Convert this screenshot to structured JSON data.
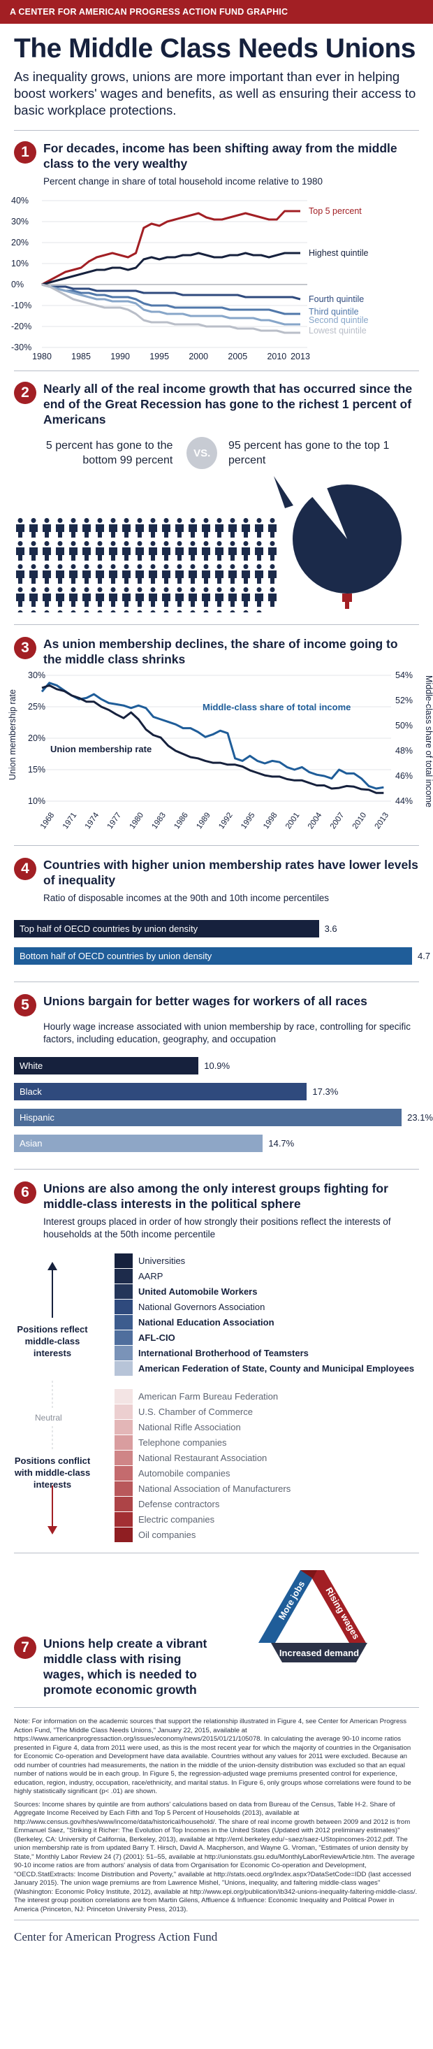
{
  "header": {
    "banner": "A CENTER FOR AMERICAN PROGRESS ACTION FUND GRAPHIC"
  },
  "title": "The Middle Class Needs Unions",
  "intro": "As inequality grows, unions are more important than ever in helping boost workers' wages and benefits, as well as ensuring their access to basic workplace protections.",
  "sections": {
    "s1": {
      "num": "1",
      "title": "For decades, income has been shifting away from the middle class to the very wealthy",
      "subtitle": "Percent change in share of total household income relative to 1980"
    },
    "s2": {
      "num": "2",
      "title": "Nearly all of the real income growth that has occurred since the end of the Great Recession has gone to the richest 1 percent of Americans",
      "left_text": "5 percent has gone to the bottom 99 percent",
      "vs": "VS.",
      "right_text": "95 percent has gone to the top 1 percent"
    },
    "s3": {
      "num": "3",
      "title": "As union membership declines, the share of income going to the middle class shrinks"
    },
    "s4": {
      "num": "4",
      "title": "Countries with higher union membership rates have lower levels of inequality",
      "subtitle": "Ratio of disposable incomes at the 90th and 10th income percentiles"
    },
    "s5": {
      "num": "5",
      "title": "Unions bargain for better wages for workers of all races",
      "subtitle": "Hourly wage increase associated with union membership by race, controlling for specific factors, including education, geography, and occupation"
    },
    "s6": {
      "num": "6",
      "title": "Unions are also among the only interest groups fighting for middle-class interests in the political sphere",
      "subtitle": "Interest groups placed in order of how strongly their positions reflect the interests of households at the 50th income percentile",
      "positive_label": "Positions reflect middle-class interests",
      "neutral_label": "Neutral",
      "negative_label": "Positions conflict with middle-class interests"
    },
    "s7": {
      "num": "7",
      "title": "Unions help create a vibrant middle class with rising wages, which is needed to promote economic growth",
      "cycle": {
        "left": "More jobs",
        "right": "Rising wages",
        "bottom": "Increased demand"
      }
    }
  },
  "chart_data": [
    {
      "type": "line",
      "title": "Percent change in share of total household income relative to 1980",
      "x_ticks": [
        "1980",
        "1985",
        "1990",
        "1995",
        "2000",
        "2005",
        "2010",
        "2013"
      ],
      "ylim": [
        -30,
        40
      ],
      "y_ticks": [
        "40%",
        "30%",
        "20%",
        "10%",
        "0%",
        "-10%",
        "-20%",
        "-30%"
      ],
      "x": [
        1980,
        1981,
        1982,
        1983,
        1984,
        1985,
        1986,
        1987,
        1988,
        1989,
        1990,
        1991,
        1992,
        1993,
        1994,
        1995,
        1996,
        1997,
        1998,
        1999,
        2000,
        2001,
        2002,
        2003,
        2004,
        2005,
        2006,
        2007,
        2008,
        2009,
        2010,
        2011,
        2012,
        2013
      ],
      "series": [
        {
          "name": "Top 5 percent",
          "color": "#a21f24",
          "values": [
            0,
            2,
            4,
            6,
            7,
            8,
            11,
            13,
            14,
            15,
            14,
            13,
            15,
            27,
            29,
            28,
            30,
            31,
            32,
            33,
            34,
            32,
            31,
            31,
            32,
            33,
            34,
            33,
            32,
            31,
            31,
            35,
            35,
            35
          ]
        },
        {
          "name": "Highest quintile",
          "color": "#16213d",
          "values": [
            0,
            1,
            2,
            3,
            4,
            5,
            6,
            7,
            7,
            8,
            8,
            7,
            8,
            12,
            13,
            12,
            13,
            13,
            14,
            14,
            15,
            14,
            13,
            13,
            14,
            14,
            15,
            14,
            14,
            13,
            14,
            15,
            15,
            15
          ]
        },
        {
          "name": "Fourth quintile",
          "color": "#2f4a7d",
          "values": [
            0,
            -1,
            -1,
            -1,
            -2,
            -2,
            -2,
            -3,
            -3,
            -3,
            -3,
            -3,
            -3,
            -4,
            -4,
            -4,
            -4,
            -4,
            -5,
            -5,
            -5,
            -5,
            -5,
            -5,
            -5,
            -5,
            -6,
            -6,
            -6,
            -6,
            -6,
            -6,
            -6,
            -7
          ]
        },
        {
          "name": "Third quintile",
          "color": "#5178aa",
          "values": [
            0,
            -1,
            -2,
            -3,
            -3,
            -4,
            -4,
            -5,
            -5,
            -6,
            -6,
            -6,
            -7,
            -9,
            -10,
            -10,
            -10,
            -11,
            -11,
            -11,
            -11,
            -11,
            -11,
            -11,
            -12,
            -12,
            -12,
            -12,
            -12,
            -12,
            -13,
            -14,
            -14,
            -14
          ]
        },
        {
          "name": "Second quintile",
          "color": "#87a6c9",
          "values": [
            0,
            -1,
            -2,
            -3,
            -4,
            -5,
            -6,
            -7,
            -7,
            -8,
            -8,
            -8,
            -9,
            -12,
            -13,
            -13,
            -14,
            -14,
            -14,
            -15,
            -15,
            -15,
            -15,
            -15,
            -16,
            -16,
            -16,
            -16,
            -17,
            -17,
            -18,
            -19,
            -19,
            -19
          ]
        },
        {
          "name": "Lowest quintile",
          "color": "#b9bec8",
          "values": [
            0,
            -1,
            -3,
            -5,
            -7,
            -8,
            -9,
            -10,
            -11,
            -11,
            -11,
            -12,
            -14,
            -17,
            -18,
            -18,
            -18,
            -19,
            -19,
            -19,
            -19,
            -20,
            -20,
            -20,
            -20,
            -21,
            -21,
            -21,
            -22,
            -22,
            -22,
            -23,
            -23,
            -23
          ]
        }
      ]
    },
    {
      "type": "table",
      "people_bottom": 99,
      "people_top": 1,
      "share_bottom_percent": 5,
      "share_top_percent": 95
    },
    {
      "type": "line",
      "x_ticks": [
        "1968",
        "1971",
        "1974",
        "1977",
        "1980",
        "1983",
        "1986",
        "1989",
        "1992",
        "1995",
        "1998",
        "2001",
        "2004",
        "2007",
        "2010",
        "2013"
      ],
      "ylabel_left": "Union membership rate",
      "ylabel_right": "Middle-class share of total income",
      "ylim_left": [
        10,
        30
      ],
      "y_ticks_left": [
        "30%",
        "25%",
        "20%",
        "15%",
        "10%"
      ],
      "ylim_right": [
        44,
        54
      ],
      "y_ticks_right": [
        "54%",
        "52%",
        "50%",
        "48%",
        "46%",
        "44%"
      ],
      "x": [
        1967,
        1968,
        1969,
        1970,
        1971,
        1972,
        1973,
        1974,
        1975,
        1976,
        1977,
        1978,
        1979,
        1980,
        1981,
        1982,
        1983,
        1984,
        1985,
        1986,
        1987,
        1988,
        1989,
        1990,
        1991,
        1992,
        1993,
        1994,
        1995,
        1996,
        1997,
        1998,
        1999,
        2000,
        2001,
        2002,
        2003,
        2004,
        2005,
        2006,
        2007,
        2008,
        2009,
        2010,
        2011,
        2012,
        2013
      ],
      "series": [
        {
          "name": "Middle-class share of total income",
          "axis": "right",
          "color": "#1f5d99",
          "values": [
            52.7,
            53.4,
            53.2,
            52.8,
            52.4,
            52.1,
            52.2,
            52.5,
            52.1,
            51.8,
            51.7,
            51.6,
            51.4,
            51.6,
            51.4,
            50.7,
            50.5,
            50.3,
            50.1,
            49.8,
            49.8,
            49.5,
            49.1,
            49.3,
            49.6,
            49.4,
            47.4,
            47.2,
            47.6,
            47.2,
            47.0,
            47.2,
            47.1,
            46.7,
            46.5,
            46.7,
            46.3,
            46.1,
            46.0,
            45.8,
            46.5,
            46.2,
            46.2,
            45.8,
            45.2,
            45.0,
            45.1
          ]
        },
        {
          "name": "Union membership rate",
          "axis": "left",
          "color": "#16213d",
          "values": [
            28.0,
            28.4,
            27.8,
            27.5,
            26.8,
            26.4,
            25.8,
            25.8,
            25.0,
            24.5,
            23.8,
            23.2,
            24.1,
            23.0,
            21.4,
            20.5,
            20.1,
            18.8,
            18.0,
            17.5,
            17.0,
            16.8,
            16.4,
            16.1,
            16.1,
            15.8,
            15.8,
            15.5,
            14.9,
            14.5,
            14.1,
            13.9,
            13.9,
            13.5,
            13.3,
            13.3,
            12.9,
            12.5,
            12.5,
            12.0,
            12.1,
            12.4,
            12.3,
            11.9,
            11.8,
            11.3,
            11.3
          ]
        }
      ]
    },
    {
      "type": "bar",
      "categories": [
        "Top half of OECD countries by union density",
        "Bottom half of OECD countries by union density"
      ],
      "values": [
        3.6,
        4.7
      ],
      "value_labels": [
        "3.6",
        "4.7"
      ],
      "colors": [
        "#16213d",
        "#1f5d99"
      ],
      "xlim": [
        0,
        4.7
      ]
    },
    {
      "type": "bar",
      "categories": [
        "White",
        "Black",
        "Hispanic",
        "Asian"
      ],
      "values": [
        10.9,
        17.3,
        23.1,
        14.7
      ],
      "value_labels": [
        "10.9%",
        "17.3%",
        "23.1%",
        "14.7%"
      ],
      "colors": [
        "#16213d",
        "#2f4a7d",
        "#4d6d99",
        "#8ea6c6"
      ],
      "xlim": [
        0,
        23.1
      ]
    },
    {
      "type": "table",
      "groups": [
        {
          "name": "Universities",
          "color": "#16213d",
          "weight": "light"
        },
        {
          "name": "AARP",
          "color": "#1d2b4b",
          "weight": "light"
        },
        {
          "name": "United Automobile Workers",
          "color": "#233559",
          "weight": "bold"
        },
        {
          "name": "National Governors Association",
          "color": "#2f4a7d",
          "weight": "light"
        },
        {
          "name": "National Education Association",
          "color": "#3d5c8e",
          "weight": "bold"
        },
        {
          "name": "AFL-CIO",
          "color": "#4f6e9d",
          "weight": "bold"
        },
        {
          "name": "International Brotherhood of Teamsters",
          "color": "#7a93b8",
          "weight": "bold"
        },
        {
          "name": "American Federation of State, County and Municipal Employees",
          "color": "#b7c4d8",
          "weight": "bold"
        },
        {
          "name": "American Farm Bureau Federation",
          "color": "#f3e4e4",
          "weight": "light"
        },
        {
          "name": "U.S. Chamber of Commerce",
          "color": "#eccfd0",
          "weight": "light"
        },
        {
          "name": "National Rifle Association",
          "color": "#e3b6b7",
          "weight": "light"
        },
        {
          "name": "Telephone companies",
          "color": "#d99d9f",
          "weight": "light"
        },
        {
          "name": "National Restaurant Association",
          "color": "#cf8587",
          "weight": "light"
        },
        {
          "name": "Automobile companies",
          "color": "#c46b6e",
          "weight": "light"
        },
        {
          "name": "National Association of Manufacturers",
          "color": "#b9585b",
          "weight": "light"
        },
        {
          "name": "Defense contractors",
          "color": "#ad4447",
          "weight": "light"
        },
        {
          "name": "Electric companies",
          "color": "#a32f33",
          "weight": "light"
        },
        {
          "name": "Oil companies",
          "color": "#8f1e22",
          "weight": "light"
        }
      ]
    }
  ],
  "notes": {
    "note": "Note: For information on the academic sources that support the relationship illustrated in Figure 4, see Center for American Progress Action Fund, \"The Middle Class Needs Unions,\" January 22, 2015, available at https://www.americanprogressaction.org/issues/economy/news/2015/01/21/105078. In calculating the average 90-10 income ratios presented in Figure 4, data from 2011 were used, as this is the most recent year for which the majority of countries in the Organisation for Economic Co-operation and Development have data available. Countries without any values for 2011 were excluded. Because an odd number of countries had measurements, the nation in the middle of the union-density distribution was excluded so that an equal number of nations would be in each group. In Figure 5, the regression-adjusted wage premiums presented control for experience, education, region, industry, occupation, race/ethnicity, and marital status. In Figure 6, only groups whose correlations were found to be highly statistically significant (p< .01) are shown.",
    "sources": "Sources: Income shares by quintile are from authors' calculations based on data from Bureau of the Census, Table H-2. Share of Aggregate Income Received by Each Fifth and Top 5 Percent of Households (2013), available at http://www.census.gov/hhes/www/income/data/historical/household/. The share of real income growth between 2009 and 2012 is from Emmanuel Saez, \"Striking it Richer: The Evolution of Top Incomes in the United States (Updated with 2012 preliminary estimates)\" (Berkeley, CA: University of California, Berkeley, 2013), available at http://eml.berkeley.edu/~saez/saez-UStopincomes-2012.pdf. The union membership rate is from updated Barry T. Hirsch, David A. Macpherson, and Wayne G. Vroman, \"Estimates of union density by State,\" Monthly Labor Review 24 (7) (2001): 51–55, available at http://unionstats.gsu.edu/MonthlyLaborReviewArticle.htm. The average 90-10 income ratios are from authors' analysis of data from Organisation for Economic Co-operation and Development, \"OECD.StatExtracts: Income Distribution and Poverty,\" available at http://stats.oecd.org/Index.aspx?DataSetCode=IDD (last accessed January 2015). The union wage premiums are from Lawrence Mishel, \"Unions, inequality, and faltering middle-class wages\" (Washington: Economic Policy Institute, 2012), available at http://www.epi.org/publication/ib342-unions-inequality-faltering-middle-class/. The interest group position correlations are from Martin Gilens, Affluence & Influence: Economic Inequality and Political Power in America (Princeton, NJ: Princeton University Press, 2013)."
  },
  "footer": {
    "logo_text": "Center for American Progress Action Fund"
  }
}
